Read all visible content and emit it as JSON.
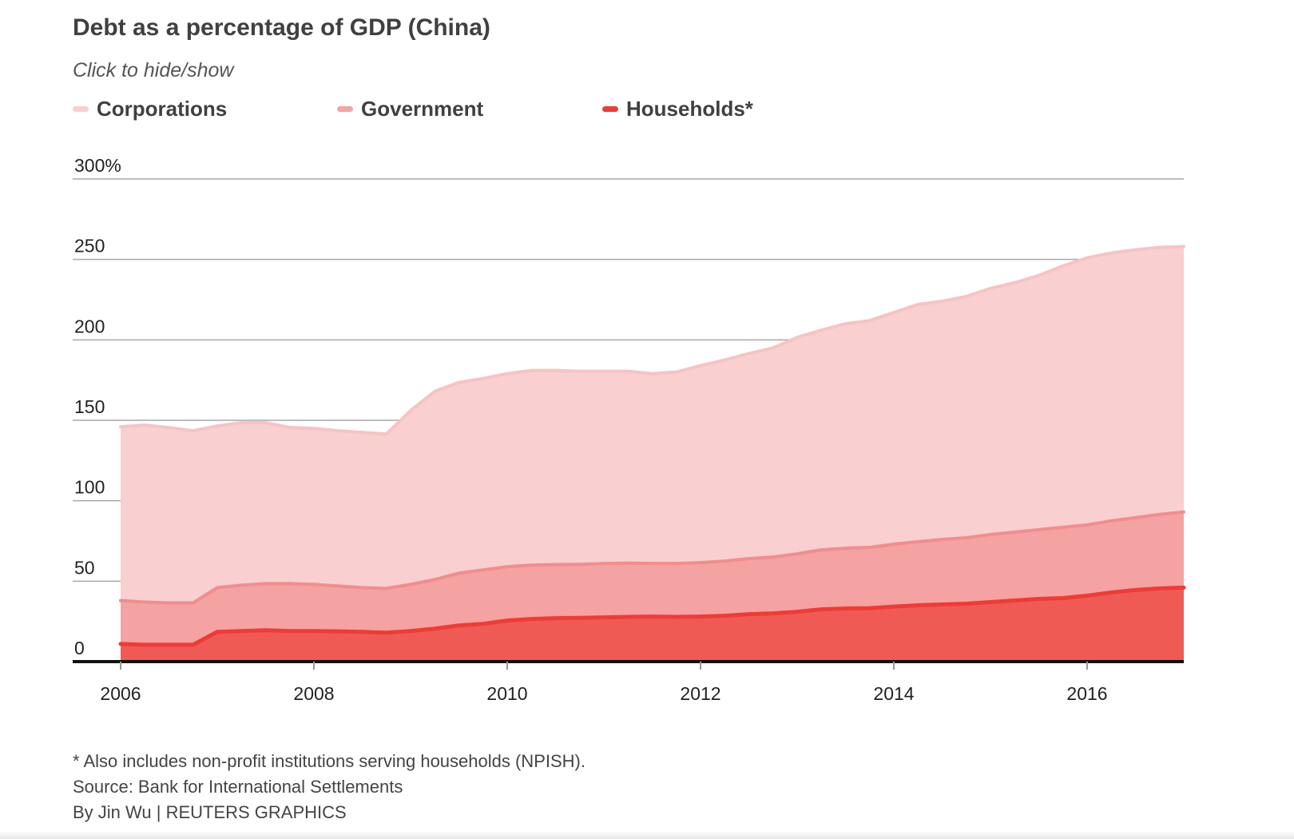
{
  "header": {
    "title": "Debt as a percentage of GDP (China)",
    "subtitle": "Click to hide/show"
  },
  "legend": {
    "items": [
      {
        "label": "Corporations",
        "color": "#f9cfcf"
      },
      {
        "label": "Government",
        "color": "#f4a2a2"
      },
      {
        "label": "Households*",
        "color": "#ef3b36"
      }
    ]
  },
  "footer": {
    "note": "* Also includes non-profit institutions serving households (NPISH).",
    "source": "Source: Bank for International Settlements",
    "credit": "By Jin Wu | REUTERS GRAPHICS"
  },
  "chart_data": {
    "type": "area",
    "stacked": true,
    "title": "Debt as a percentage of GDP (China)",
    "subtitle": "Click to hide/show",
    "xlim": [
      2006,
      2017
    ],
    "ylim": [
      0,
      300
    ],
    "y_ticks": [
      0,
      50,
      100,
      150,
      200,
      250,
      300
    ],
    "y_tick_labels": [
      "0",
      "50",
      "100",
      "150",
      "200",
      "250",
      "300%"
    ],
    "x_ticks": [
      2006,
      2008,
      2010,
      2012,
      2014,
      2016
    ],
    "x_tick_labels": [
      "2006",
      "2008",
      "2010",
      "2012",
      "2014",
      "2016"
    ],
    "grid": true,
    "legend_position": "top-left",
    "x": [
      2006.0,
      2006.25,
      2006.5,
      2006.75,
      2007.0,
      2007.25,
      2007.5,
      2007.75,
      2008.0,
      2008.25,
      2008.5,
      2008.75,
      2009.0,
      2009.25,
      2009.5,
      2009.75,
      2010.0,
      2010.25,
      2010.5,
      2010.75,
      2011.0,
      2011.25,
      2011.5,
      2011.75,
      2012.0,
      2012.25,
      2012.5,
      2012.75,
      2013.0,
      2013.25,
      2013.5,
      2013.75,
      2014.0,
      2014.25,
      2014.5,
      2014.75,
      2015.0,
      2015.25,
      2015.5,
      2015.75,
      2016.0,
      2016.25,
      2016.5,
      2016.75,
      2017.0
    ],
    "series": [
      {
        "name": "Households*",
        "color": "#ef3b36",
        "fill": "#f05a55",
        "values": [
          11,
          10.5,
          10.5,
          10.5,
          18.5,
          19,
          19.5,
          19,
          19,
          18.8,
          18.5,
          18,
          19,
          20.5,
          22.5,
          23.5,
          25.5,
          26.5,
          27,
          27.2,
          27.5,
          27.8,
          28,
          27.8,
          28,
          28.5,
          29.5,
          30,
          31,
          32.5,
          33,
          33.2,
          34.2,
          35,
          35.5,
          36,
          37,
          38,
          39,
          39.5,
          41,
          43,
          44.5,
          45.5,
          46
        ]
      },
      {
        "name": "Government",
        "color": "#f28d8d",
        "fill": "#f4a2a2",
        "values": [
          38,
          37,
          36.5,
          36.5,
          46,
          47.5,
          48.5,
          48.5,
          48,
          47,
          46,
          45.5,
          48,
          51,
          55,
          57,
          59,
          60,
          60.3,
          60.5,
          61,
          61.2,
          61,
          61,
          61.5,
          62.5,
          64,
          65,
          67,
          69.5,
          70.5,
          71,
          73,
          74.5,
          76,
          77,
          79,
          80.5,
          82,
          83.5,
          85,
          87.5,
          89.5,
          91.5,
          93
        ]
      },
      {
        "name": "Corporations",
        "color": "#f7c3c3",
        "fill": "#f9cfcf",
        "values": [
          146,
          147,
          145.5,
          143.5,
          146.5,
          148.5,
          148.5,
          145.5,
          145,
          143.5,
          142.5,
          141.5,
          156,
          168,
          173.5,
          176,
          179,
          181,
          181,
          180.5,
          180.5,
          180.5,
          179,
          180,
          184,
          187.5,
          191.5,
          195,
          201.5,
          206,
          210,
          212,
          217,
          222,
          224,
          227,
          232,
          235.5,
          240,
          246,
          251,
          254,
          256,
          257.5,
          258
        ]
      }
    ]
  }
}
